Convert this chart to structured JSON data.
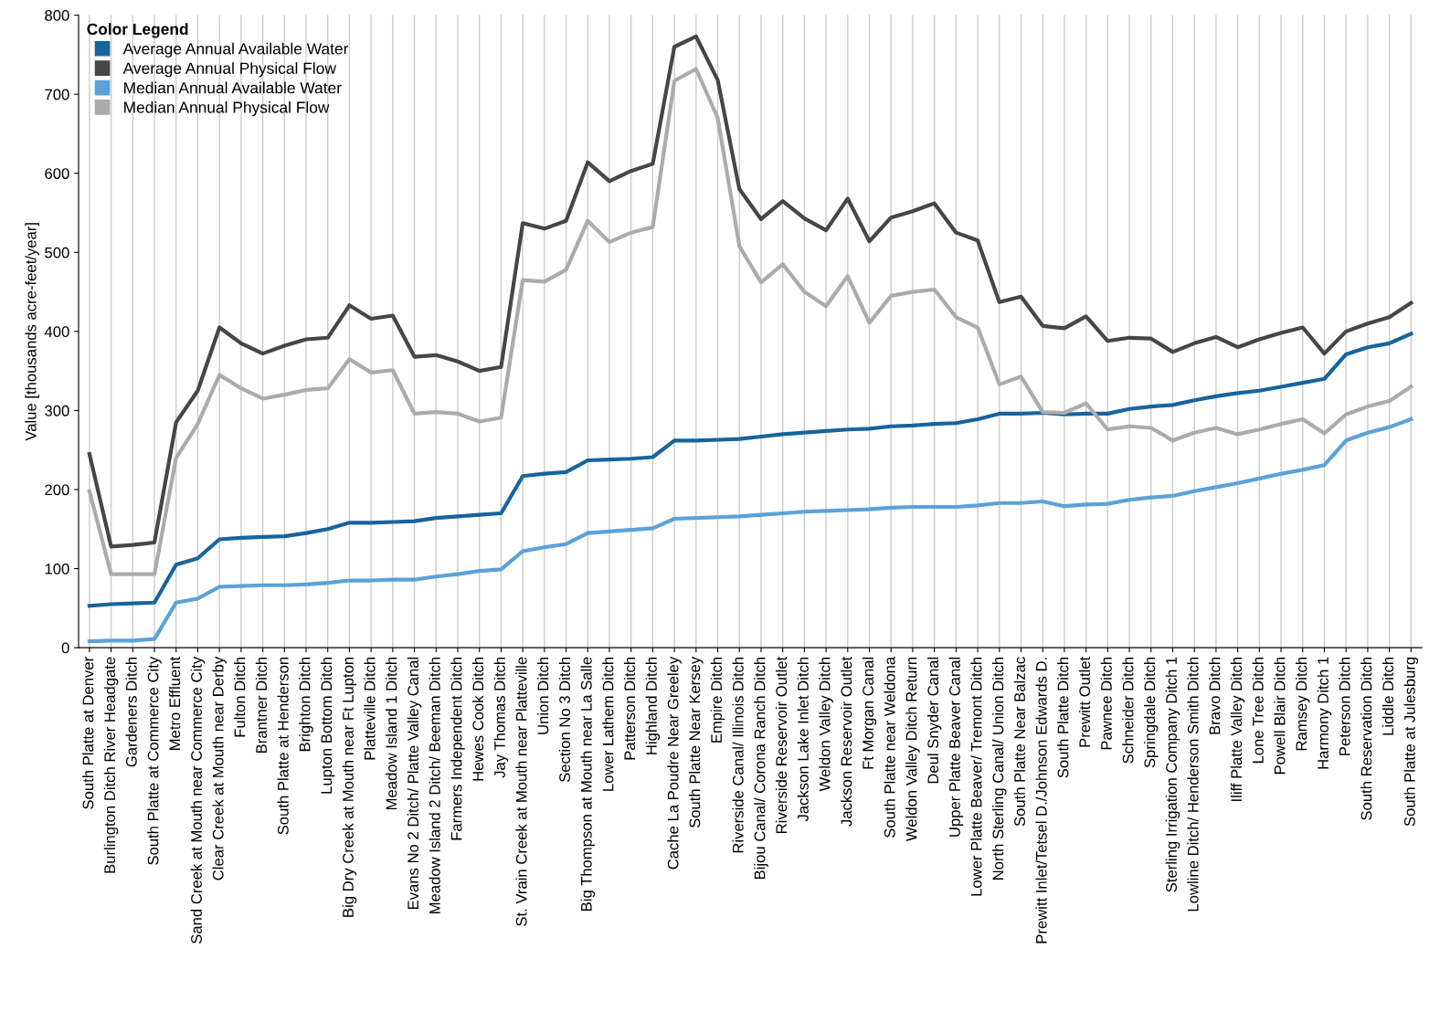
{
  "chart_data": {
    "type": "line",
    "ylabel": "Value [thousands acre-feet/year]",
    "legend_title": "Color Legend",
    "legend": "top left",
    "grid": "x",
    "marker": "none",
    "line_style": "solid",
    "ylim": [
      0,
      800
    ],
    "yticks": [
      0,
      100,
      200,
      300,
      400,
      500,
      600,
      700,
      800
    ],
    "categories": [
      "South Platte at Denver",
      "Burlington Ditch River Headgate",
      "Gardeners Ditch",
      "South Platte at Commerce City",
      "Metro Effluent",
      "Sand Creek at Mouth near Commerce City",
      "Clear Creek at Mouth near Derby",
      "Fulton Ditch",
      "Brantner Ditch",
      "South Platte at Henderson",
      "Brighton Ditch",
      "Lupton Bottom Ditch",
      "Big Dry Creek at Mouth near Ft Lupton",
      "Platteville Ditch",
      "Meadow Island 1 Ditch",
      "Evans No 2 Ditch/ Platte Valley Canal",
      "Meadow Island 2 Ditch/ Beeman Ditch",
      "Farmers Independent Ditch",
      "Hewes Cook Ditch",
      "Jay Thomas Ditch",
      "St. Vrain Creek at Mouth near Platteville",
      "Union Ditch",
      "Section No 3 Ditch",
      "Big Thompson at Mouth near La Salle",
      "Lower Lathem Ditch",
      "Patterson Ditch",
      "Highland Ditch",
      "Cache La Poudre Near Greeley",
      "South Platte Near Kersey",
      "Empire Ditch",
      "Riverside Canal/ Illinois Ditch",
      "Bijou Canal/ Corona Ranch Ditch",
      "Riverside Reservoir Outlet",
      "Jackson Lake Inlet Ditch",
      "Weldon Valley Ditch",
      "Jackson Reservoir Outlet",
      "Ft Morgan Canal",
      "South Platte near Weldona",
      "Weldon Valley Ditch Return",
      "Deul Snyder Canal",
      "Upper Platte Beaver Canal",
      "Lower Platte Beaver/ Tremont Ditch",
      "North Sterling Canal/ Union Ditch",
      "South Platte Near Balzac",
      "Prewitt Inlet/Tetsel D./Johnson Edwards D.",
      "South Platte Ditch",
      "Prewitt Outlet",
      "Pawnee Ditch",
      "Schneider Ditch",
      "Springdale Ditch",
      "Sterling Irrigation Company Ditch 1",
      "Lowline Ditch/ Henderson Smith Ditch",
      "Bravo Ditch",
      "Iliff Platte Valley Ditch",
      "Lone Tree Ditch",
      "Powell Blair Ditch",
      "Ramsey Ditch",
      "Harmony Ditch 1",
      "Peterson Ditch",
      "South Reservation Ditch",
      "Liddle Ditch",
      "South Platte at Julesburg"
    ],
    "series": [
      {
        "name": "Average Annual Available Water",
        "color": "#17649e",
        "values": [
          53,
          55,
          56,
          57,
          105,
          113,
          137,
          139,
          140,
          141,
          145,
          150,
          158,
          158,
          159,
          160,
          164,
          166,
          168,
          170,
          217,
          220,
          222,
          237,
          238,
          239,
          241,
          262,
          262,
          263,
          264,
          267,
          270,
          272,
          274,
          276,
          277,
          280,
          281,
          283,
          284,
          289,
          296,
          296,
          297,
          295,
          296,
          296,
          302,
          305,
          307,
          313,
          318,
          322,
          325,
          330,
          335,
          340,
          371,
          380,
          385,
          397
        ]
      },
      {
        "name": "Average Annual Physical Flow",
        "color": "#464646",
        "values": [
          245,
          128,
          130,
          133,
          285,
          325,
          405,
          385,
          372,
          382,
          390,
          392,
          433,
          416,
          420,
          368,
          370,
          362,
          350,
          355,
          537,
          530,
          540,
          614,
          590,
          603,
          612,
          760,
          773,
          718,
          580,
          542,
          565,
          543,
          528,
          568,
          514,
          544,
          552,
          562,
          525,
          515,
          437,
          444,
          407,
          404,
          419,
          388,
          392,
          391,
          374,
          385,
          393,
          380,
          390,
          398,
          405,
          372,
          400,
          410,
          418,
          436
        ]
      },
      {
        "name": "Median Annual Available Water",
        "color": "#5ca2d8",
        "values": [
          8,
          9,
          9,
          11,
          57,
          62,
          77,
          78,
          79,
          79,
          80,
          82,
          85,
          85,
          86,
          86,
          90,
          93,
          97,
          99,
          122,
          127,
          131,
          145,
          147,
          149,
          151,
          163,
          164,
          165,
          166,
          168,
          170,
          172,
          173,
          174,
          175,
          177,
          178,
          178,
          178,
          180,
          183,
          183,
          185,
          179,
          181,
          182,
          187,
          190,
          192,
          198,
          203,
          208,
          214,
          220,
          225,
          231,
          262,
          272,
          279,
          289
        ]
      },
      {
        "name": "Median Annual Physical Flow",
        "color": "#ababab",
        "values": [
          198,
          93,
          93,
          93,
          240,
          283,
          345,
          328,
          315,
          320,
          326,
          328,
          365,
          348,
          351,
          296,
          298,
          296,
          286,
          291,
          465,
          463,
          478,
          540,
          513,
          525,
          532,
          717,
          732,
          670,
          508,
          462,
          485,
          450,
          432,
          470,
          411,
          445,
          450,
          453,
          418,
          405,
          333,
          343,
          298,
          297,
          309,
          276,
          280,
          278,
          262,
          272,
          278,
          270,
          276,
          283,
          289,
          271,
          295,
          305,
          312,
          330
        ]
      }
    ]
  }
}
